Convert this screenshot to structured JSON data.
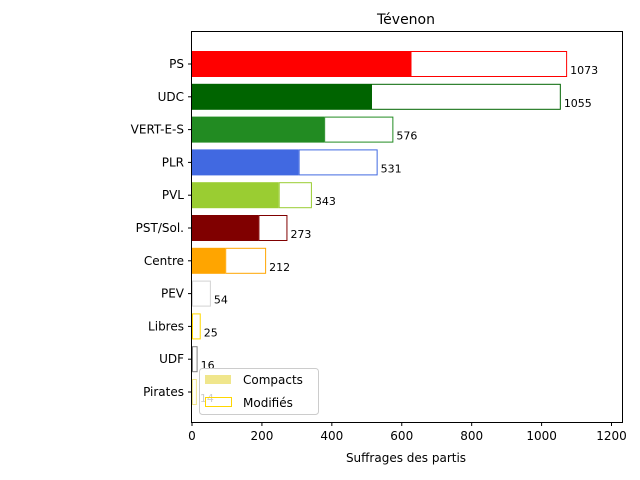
{
  "chart_data": {
    "type": "bar",
    "orientation": "horizontal",
    "title": "Tévenon",
    "xlabel": "Suffrages des partis",
    "ylabel": "",
    "xlim": [
      0,
      1230
    ],
    "x_ticks": [
      0,
      200,
      400,
      600,
      800,
      1000,
      1200
    ],
    "grid": false,
    "legend_position": "bottom-left",
    "categories": [
      "PS",
      "UDC",
      "VERT-E-S",
      "PLR",
      "PVL",
      "PST/Sol.",
      "Centre",
      "PEV",
      "Libres",
      "UDF",
      "Pirates"
    ],
    "colors": [
      "#ff0000",
      "#006400",
      "#228b22",
      "#4169e1",
      "#9acd32",
      "#800000",
      "#ffa500",
      "#d3d3d3",
      "#ffd700",
      "#808080",
      "#f0e68c"
    ],
    "series": [
      {
        "name": "Compacts",
        "values": [
          625,
          512,
          378,
          305,
          248,
          190,
          95,
          0,
          0,
          0,
          0
        ]
      },
      {
        "name": "Modifiés",
        "values": [
          448,
          543,
          198,
          226,
          95,
          83,
          117,
          54,
          25,
          16,
          14
        ]
      }
    ],
    "totals": [
      1073,
      1055,
      576,
      531,
      343,
      273,
      212,
      54,
      25,
      16,
      14
    ],
    "legend": [
      {
        "label": "Compacts",
        "style": "filled",
        "color": "#f0e68c"
      },
      {
        "label": "Modifiés",
        "style": "outline",
        "color": "#ffd700"
      }
    ]
  }
}
